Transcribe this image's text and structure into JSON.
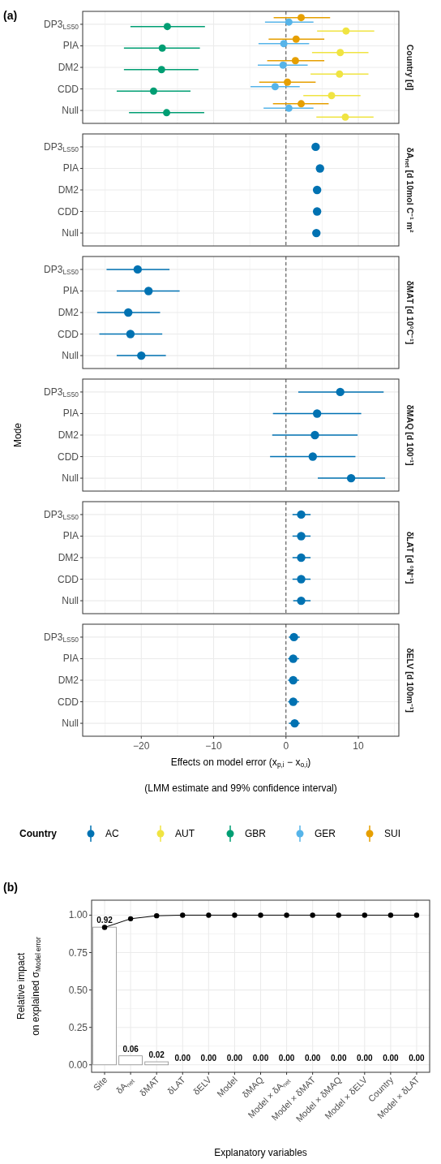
{
  "chart_data": [
    {
      "type": "scatter",
      "orientation": "horizontal",
      "y2label": "Country [d]",
      "annotations": [
        "(a)"
      ],
      "legend": "bottom",
      "legend_title": "Country",
      "categories": [
        "DP3$_{LS50}$",
        "PIA",
        "DM2",
        "CDD",
        "Null"
      ],
      "xlim": [
        -28.1,
        15.6
      ],
      "tick_labels": "y",
      "grid": true,
      "marker": "circle",
      "ref_lines": [
        {
          "axis": "x",
          "value": 0,
          "line_style": "dashed"
        }
      ],
      "series": [
        {
          "name": "AUT",
          "color": "#f0e442",
          "values": [
            8.3,
            7.5,
            7.4,
            6.3,
            8.2
          ],
          "errors": [
            [
              4.3,
              12.2
            ],
            [
              3.6,
              11.4
            ],
            [
              3.4,
              11.4
            ],
            [
              2.4,
              10.3
            ],
            [
              4.2,
              12.1
            ]
          ]
        },
        {
          "name": "GBR",
          "color": "#009e73",
          "values": [
            -16.4,
            -17.1,
            -17.2,
            -18.3,
            -16.5
          ],
          "errors": [
            [
              -21.5,
              -11.2
            ],
            [
              -22.4,
              -11.9
            ],
            [
              -22.4,
              -12.1
            ],
            [
              -23.4,
              -13.2
            ],
            [
              -21.7,
              -11.3
            ]
          ]
        },
        {
          "name": "GER",
          "color": "#56b4e9",
          "values": [
            0.4,
            -0.3,
            -0.4,
            -1.5,
            0.4
          ],
          "errors": [
            [
              -2.9,
              3.8
            ],
            [
              -3.8,
              3.2
            ],
            [
              -3.9,
              3.0
            ],
            [
              -4.9,
              1.9
            ],
            [
              -3.1,
              3.8
            ]
          ]
        },
        {
          "name": "SUI",
          "color": "#e69f00",
          "values": [
            2.1,
            1.4,
            1.3,
            0.2,
            2.1
          ],
          "errors": [
            [
              -1.7,
              6.1
            ],
            [
              -2.4,
              5.3
            ],
            [
              -2.6,
              5.3
            ],
            [
              -3.7,
              4.1
            ],
            [
              -1.8,
              5.9
            ]
          ]
        }
      ]
    },
    {
      "type": "scatter",
      "orientation": "horizontal",
      "y2label": "δA$_{net}$ [d 10mol C⁻¹ m²",
      "categories": [
        "DP3$_{LS50}$",
        "PIA",
        "DM2",
        "CDD",
        "Null"
      ],
      "xlim": [
        -28.1,
        15.6
      ],
      "tick_labels": "y",
      "grid": true,
      "marker": "circle",
      "ref_lines": [
        {
          "axis": "x",
          "value": 0,
          "line_style": "dashed"
        }
      ],
      "series": [
        {
          "name": "AC",
          "color": "#0072b2",
          "values": [
            4.1,
            4.7,
            4.3,
            4.3,
            4.2
          ]
        }
      ]
    },
    {
      "type": "scatter",
      "orientation": "horizontal",
      "y2label": "δMAT [d 10°C⁻¹]",
      "categories": [
        "DP3$_{LS50}$",
        "PIA",
        "DM2",
        "CDD",
        "Null"
      ],
      "xlim": [
        -28.1,
        15.6
      ],
      "tick_labels": "y",
      "grid": true,
      "marker": "circle",
      "ref_lines": [
        {
          "axis": "x",
          "value": 0,
          "line_style": "dashed"
        }
      ],
      "series": [
        {
          "name": "AC",
          "color": "#0072b2",
          "values": [
            -20.5,
            -19.0,
            -21.8,
            -21.5,
            -20.0
          ],
          "errors": [
            [
              -24.8,
              -16.1
            ],
            [
              -23.4,
              -14.7
            ],
            [
              -26.1,
              -17.4
            ],
            [
              -25.8,
              -17.1
            ],
            [
              -23.4,
              -16.6
            ]
          ]
        }
      ]
    },
    {
      "type": "scatter",
      "orientation": "horizontal",
      "y2label": "δMAQ [d 100⁻¹]",
      "ylabel": "Mode",
      "categories": [
        "DP3$_{LS50}$",
        "PIA",
        "DM2",
        "CDD",
        "Null"
      ],
      "xlim": [
        -28.1,
        15.6
      ],
      "tick_labels": "y",
      "grid": true,
      "marker": "circle",
      "ref_lines": [
        {
          "axis": "x",
          "value": 0,
          "line_style": "dashed"
        }
      ],
      "series": [
        {
          "name": "AC",
          "color": "#0072b2",
          "values": [
            7.5,
            4.3,
            4.0,
            3.7,
            9.0
          ],
          "errors": [
            [
              1.7,
              13.5
            ],
            [
              -1.8,
              10.4
            ],
            [
              -1.9,
              9.9
            ],
            [
              -2.2,
              9.6
            ],
            [
              4.4,
              13.7
            ]
          ]
        }
      ]
    },
    {
      "type": "scatter",
      "orientation": "horizontal",
      "y2label": "δLAT [d °N⁻¹]",
      "categories": [
        "DP3$_{LS50}$",
        "PIA",
        "DM2",
        "CDD",
        "Null"
      ],
      "xlim": [
        -28.1,
        15.6
      ],
      "tick_labels": "y",
      "grid": true,
      "marker": "circle",
      "ref_lines": [
        {
          "axis": "x",
          "value": 0,
          "line_style": "dashed"
        }
      ],
      "series": [
        {
          "name": "AC",
          "color": "#0072b2",
          "values": [
            2.1,
            2.1,
            2.1,
            2.1,
            2.1
          ],
          "errors": [
            [
              0.9,
              3.4
            ],
            [
              0.9,
              3.4
            ],
            [
              0.9,
              3.4
            ],
            [
              0.9,
              3.4
            ],
            [
              1.0,
              3.4
            ]
          ]
        }
      ]
    },
    {
      "type": "scatter",
      "orientation": "horizontal",
      "y2label": "δELV [d 100m⁻¹]",
      "xlabel": "Effects on model error (x$_{p,i}$ − x$_{o,i}$)",
      "annotations": [
        "(LMM estimate and 99% confidence interval)"
      ],
      "categories": [
        "DP3$_{LS50}$",
        "PIA",
        "DM2",
        "CDD",
        "Null"
      ],
      "xlim": [
        -28.1,
        15.6
      ],
      "xticks": [
        {
          "value": -20,
          "label": "−20"
        },
        {
          "value": -10,
          "label": "−10"
        },
        0,
        10
      ],
      "grid": true,
      "marker": "circle",
      "ref_lines": [
        {
          "axis": "x",
          "value": 0,
          "line_style": "dashed"
        }
      ],
      "series": [
        {
          "name": "AC",
          "color": "#0072b2",
          "values": [
            1.1,
            1.0,
            1.0,
            1.0,
            1.2
          ],
          "errors": [
            [
              0.4,
              1.9
            ],
            [
              0.3,
              1.8
            ],
            [
              0.3,
              1.8
            ],
            [
              0.3,
              1.8
            ],
            [
              0.4,
              1.9
            ]
          ]
        }
      ]
    },
    {
      "type": "bar",
      "annotations": [
        "(b)"
      ],
      "xlabel": "Explanatory variables",
      "ylabel": "Relative impact\non explained σ$_{Model error}$",
      "categories": [
        "Site",
        "δA$_{net}$",
        "δMAT",
        "δLAT",
        "δELV",
        "Model",
        "δMAQ",
        "Model × δA$_{net}$",
        "Model × δMAT",
        "Model × δMAQ",
        "Model × δELV",
        "Country",
        "Model × δLAT"
      ],
      "ylim": [
        -0.05,
        1.1
      ],
      "yticks": [
        {
          "value": 0,
          "label": "0.00"
        },
        {
          "value": 0.25,
          "label": "0.25"
        },
        {
          "value": 0.5,
          "label": "0.50"
        },
        {
          "value": 0.75,
          "label": "0.75"
        },
        {
          "value": 1,
          "label": "1.00"
        }
      ],
      "grid": true,
      "marker": "circle",
      "series": [
        {
          "type": "bar",
          "color": "#ffffff",
          "values": [
            0.92,
            0.06,
            0.02,
            0,
            0,
            0,
            0,
            0,
            0,
            0,
            0,
            0,
            0
          ],
          "value_labels": [
            "0.92",
            "0.06",
            "0.02",
            "0.00",
            "0.00",
            "0.00",
            "0.00",
            "0.00",
            "0.00",
            "0.00",
            "0.00",
            "0.00",
            "0.00"
          ]
        },
        {
          "type": "line",
          "color": "#000000",
          "values": [
            0.918,
            0.976,
            0.996,
            1,
            1,
            1,
            1,
            1,
            1,
            1,
            1,
            1,
            1
          ]
        }
      ]
    }
  ]
}
